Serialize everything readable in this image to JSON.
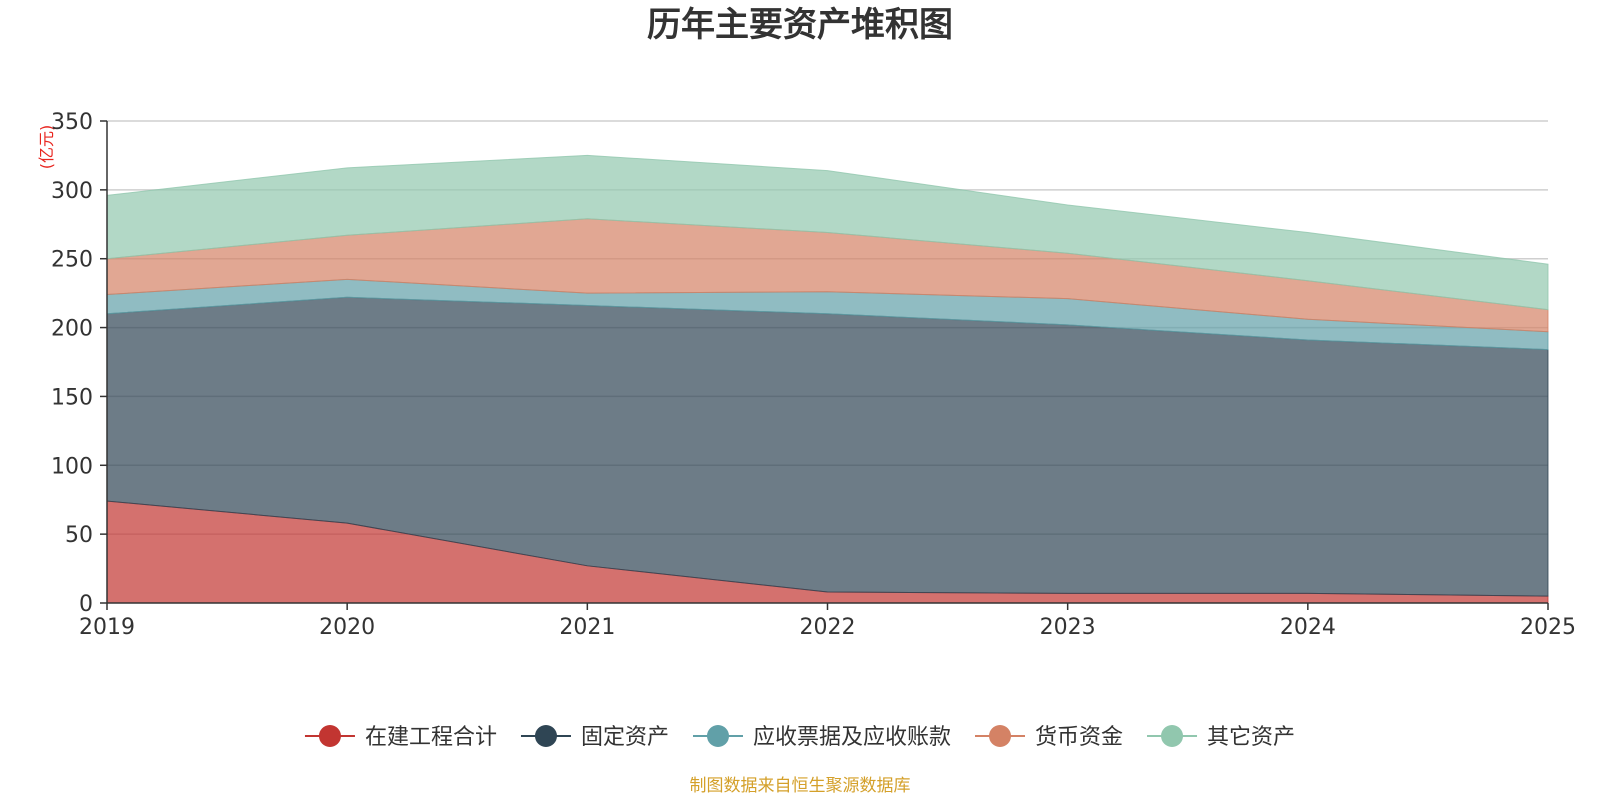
{
  "colors": {
    "construction": "#c23531",
    "fixed_assets": "#2f4554",
    "receivables": "#61a0a8",
    "cash": "#d48265",
    "other": "#91c7ae",
    "unit_label": "#e8251f",
    "source_text": "#d4a02a",
    "grid": "#cfcfcf",
    "axis": "#333333"
  },
  "chart_data": {
    "type": "area",
    "stacked": true,
    "title": "历年主要资产堆积图",
    "ylabel": "(亿元)",
    "xlabel": "",
    "x": [
      "2019",
      "2020",
      "2021",
      "2022",
      "2023",
      "2024",
      "2025"
    ],
    "ylim": [
      0,
      350
    ],
    "yticks": [
      "0",
      "50",
      "100",
      "150",
      "200",
      "250",
      "300",
      "350"
    ],
    "grid": true,
    "legend_position": "bottom-center",
    "series": [
      {
        "name": "在建工程合计",
        "color_key": "construction",
        "values": [
          74,
          58,
          27,
          8,
          7,
          7,
          5
        ]
      },
      {
        "name": "固定资产",
        "color_key": "fixed_assets",
        "values": [
          136,
          164,
          189,
          202,
          195,
          184,
          179
        ]
      },
      {
        "name": "应收票据及应收账款",
        "color_key": "receivables",
        "values": [
          14,
          13,
          9,
          16,
          19,
          15,
          13
        ]
      },
      {
        "name": "货币资金",
        "color_key": "cash",
        "values": [
          26,
          32,
          54,
          43,
          33,
          28,
          16
        ]
      },
      {
        "name": "其它资产",
        "color_key": "other",
        "values": [
          46,
          49,
          46,
          45,
          35,
          35,
          33
        ]
      }
    ],
    "source": "制图数据来自恒生聚源数据库"
  }
}
